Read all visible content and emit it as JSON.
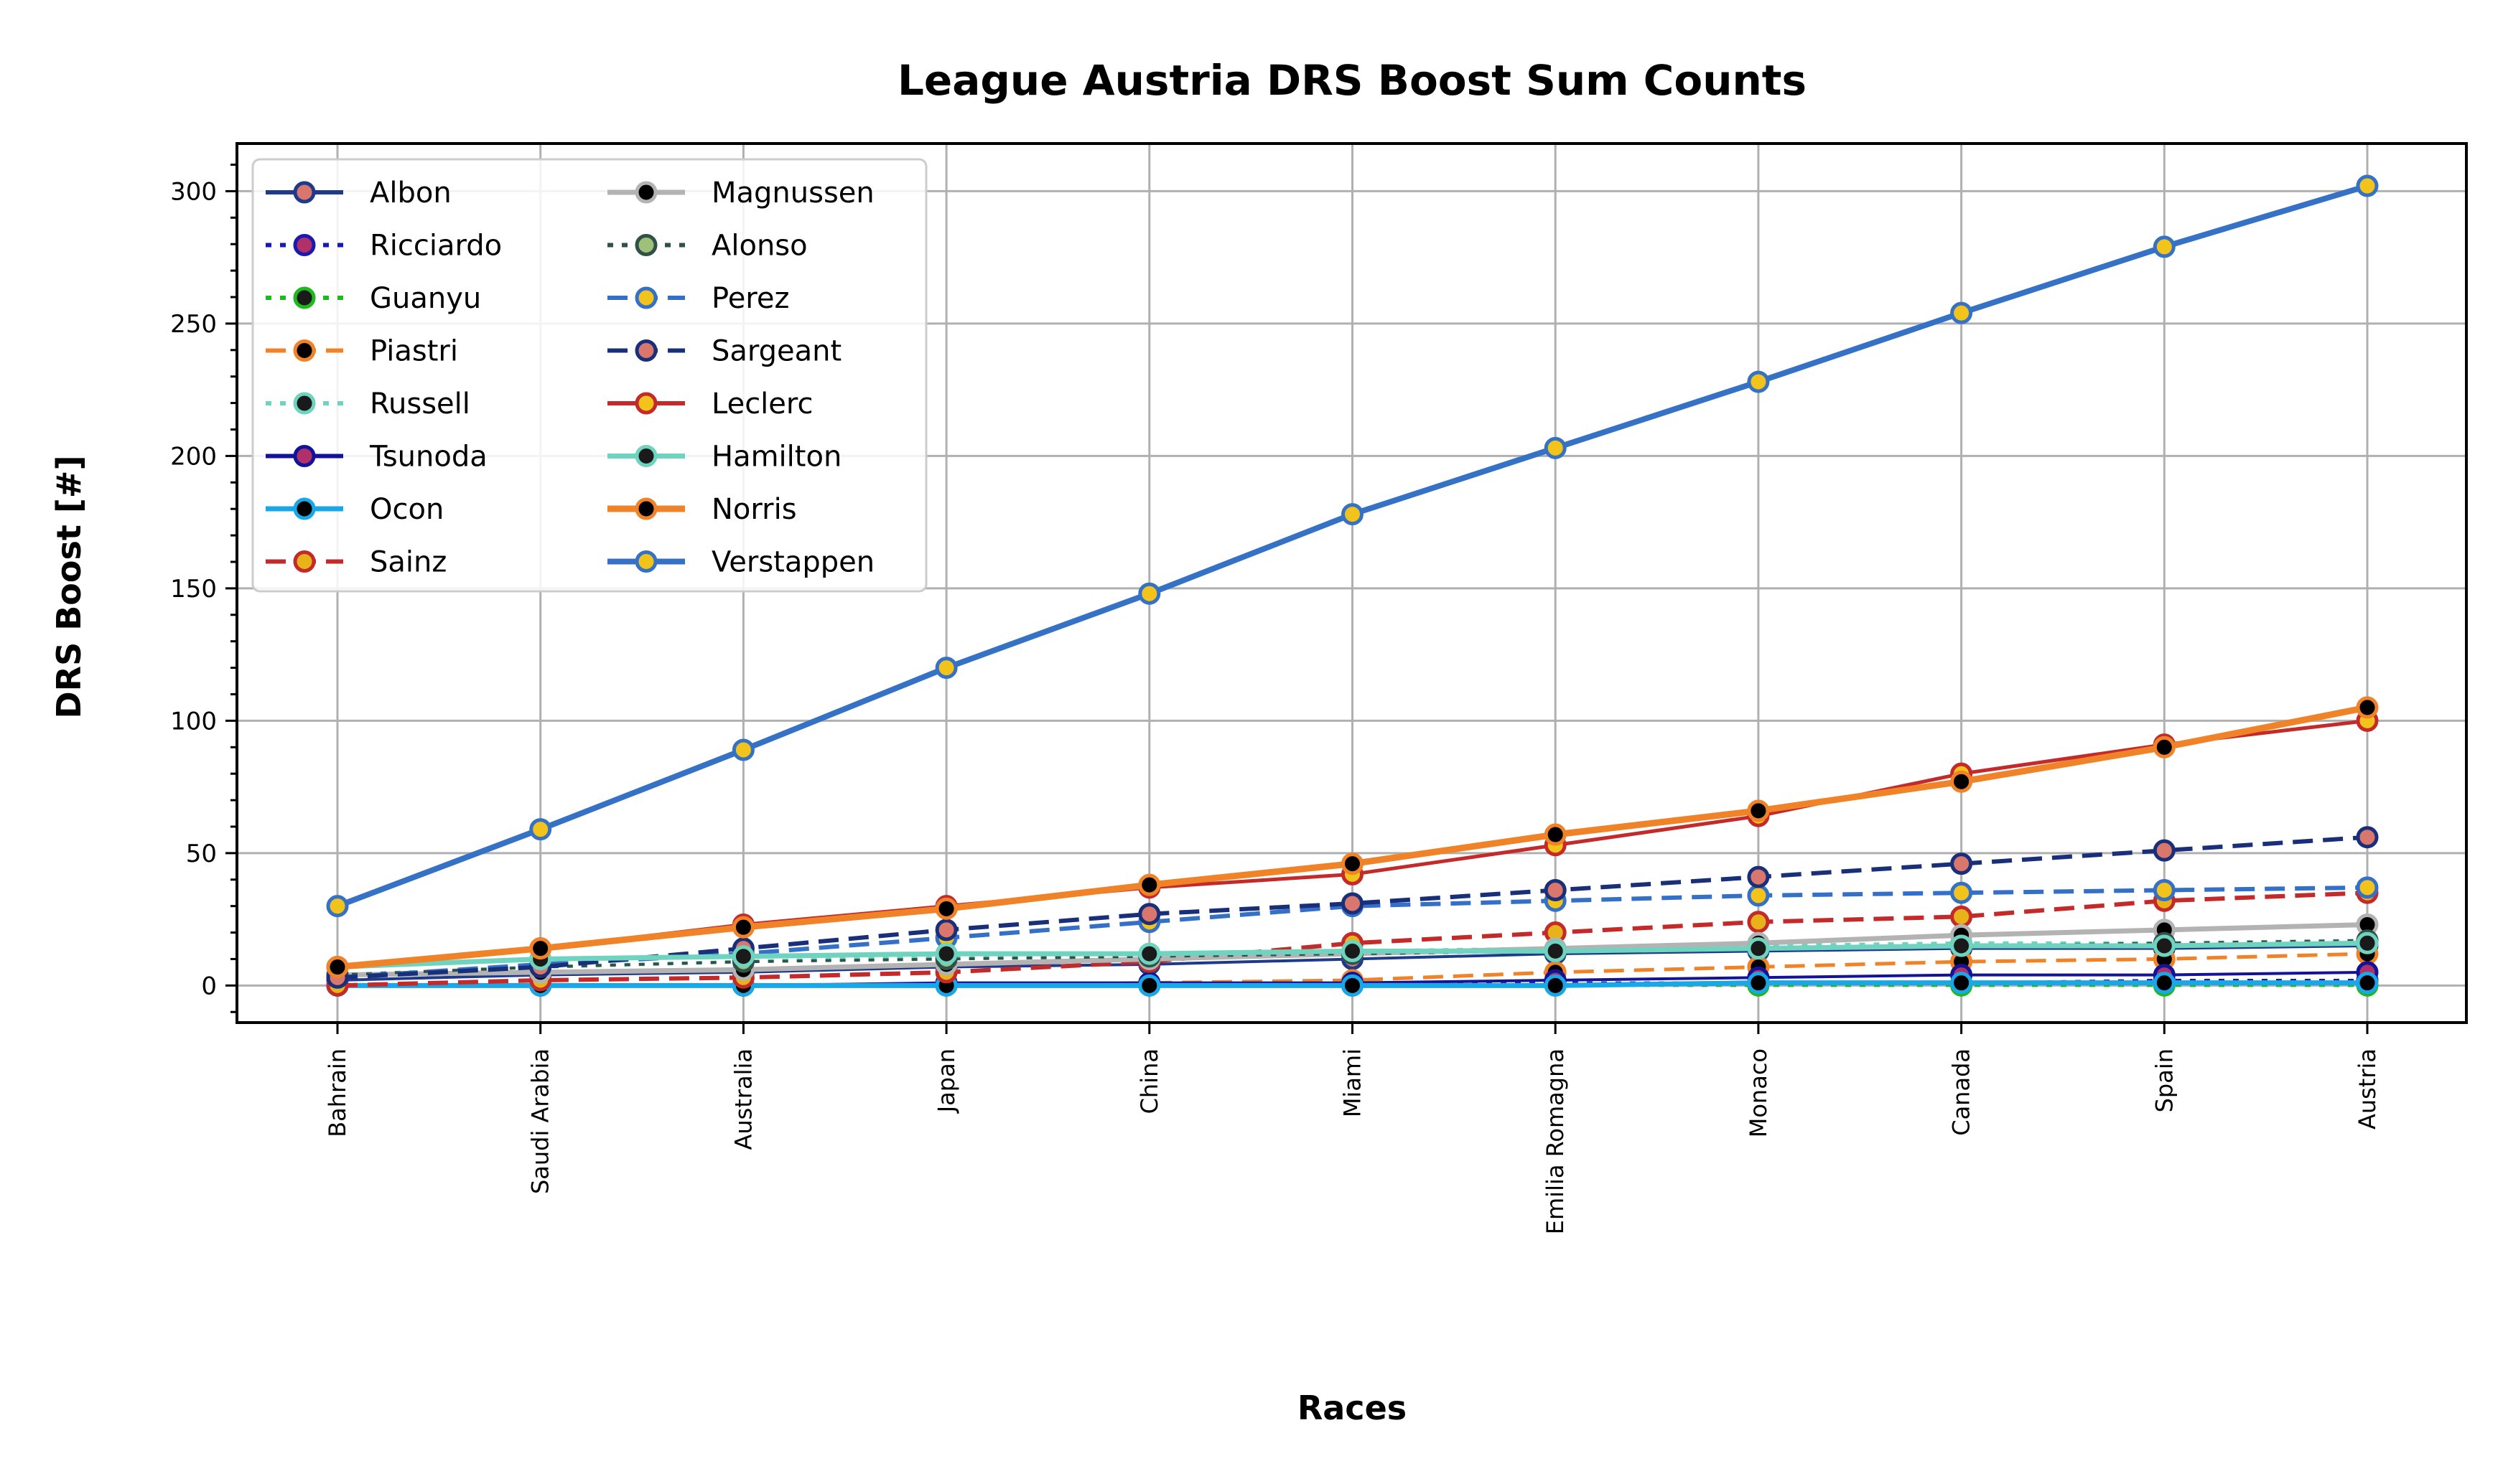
{
  "chart_data": {
    "type": "line",
    "title": "League Austria DRS Boost Sum Counts",
    "xlabel": "Races",
    "ylabel": "DRS Boost [#]",
    "ylim": [
      -14,
      318
    ],
    "yticks": [
      0,
      50,
      100,
      150,
      200,
      250,
      300
    ],
    "grid": true,
    "legend_position": "upper-left",
    "legend_columns": 2,
    "categories": [
      "Bahrain",
      "Saudi Arabia",
      "Australia",
      "Japan",
      "China",
      "Miami",
      "Emilia Romagna",
      "Monaco",
      "Canada",
      "Spain",
      "Austria"
    ],
    "series": [
      {
        "name": "Albon",
        "color": "#1f3a8a",
        "dash": "solid",
        "marker_face": "#d9776c",
        "width": 4,
        "values": [
          2,
          4,
          5,
          7,
          8,
          10,
          12,
          13,
          14,
          14,
          15
        ]
      },
      {
        "name": "Ricciardo",
        "color": "#1a1ab0",
        "dash": "dot",
        "marker_face": "#b0306a",
        "width": 4,
        "values": [
          0,
          0,
          0,
          0,
          0,
          0,
          1,
          1,
          1,
          2,
          2
        ]
      },
      {
        "name": "Guanyu",
        "color": "#1db91d",
        "dash": "dot",
        "marker_face": "#1a1a1a",
        "width": 4,
        "values": [
          0,
          0,
          0,
          0,
          0,
          0,
          0,
          0,
          0,
          0,
          0
        ]
      },
      {
        "name": "Piastri",
        "color": "#f08228",
        "dash": "dash",
        "marker_face": "#000000",
        "width": 5,
        "values": [
          0,
          0,
          0,
          0,
          1,
          2,
          5,
          7,
          9,
          10,
          12
        ]
      },
      {
        "name": "Russell",
        "color": "#6fd4bf",
        "dash": "dot",
        "marker_face": "#1a1a1a",
        "width": 5,
        "values": [
          4,
          7,
          9,
          11,
          12,
          13,
          14,
          15,
          16,
          16,
          17
        ]
      },
      {
        "name": "Tsunoda",
        "color": "#13139a",
        "dash": "solid",
        "marker_face": "#b0306a",
        "width": 4,
        "values": [
          0,
          0,
          0,
          1,
          1,
          1,
          2,
          3,
          4,
          4,
          5
        ]
      },
      {
        "name": "Ocon",
        "color": "#1aa7e8",
        "dash": "solid",
        "marker_face": "#000000",
        "width": 7,
        "values": [
          0,
          0,
          0,
          0,
          0,
          0,
          0,
          1,
          1,
          1,
          1
        ]
      },
      {
        "name": "Sainz",
        "color": "#c42a2a",
        "dash": "dash",
        "marker_face": "#e8b21a",
        "width": 6,
        "values": [
          0,
          2,
          3,
          5,
          9,
          16,
          20,
          24,
          26,
          32,
          35
        ]
      },
      {
        "name": "Magnussen",
        "color": "#b3b3b3",
        "dash": "solid",
        "marker_face": "#000000",
        "width": 7,
        "values": [
          4,
          5,
          6,
          8,
          10,
          12,
          14,
          16,
          19,
          21,
          23
        ]
      },
      {
        "name": "Alonso",
        "color": "#2f5148",
        "dash": "dot",
        "marker_face": "#9fc07a",
        "width": 4,
        "values": [
          4,
          7,
          9,
          10,
          11,
          12,
          13,
          14,
          15,
          16,
          17
        ]
      },
      {
        "name": "Perez",
        "color": "#3570c8",
        "dash": "dash",
        "marker_face": "#f2c31a",
        "width": 6,
        "values": [
          3,
          8,
          12,
          18,
          24,
          30,
          32,
          34,
          35,
          36,
          37
        ]
      },
      {
        "name": "Sargeant",
        "color": "#1a2f7a",
        "dash": "dash",
        "marker_face": "#d9776c",
        "width": 6,
        "values": [
          3,
          7,
          14,
          21,
          27,
          31,
          36,
          41,
          46,
          51,
          56
        ]
      },
      {
        "name": "Leclerc",
        "color": "#c42a2a",
        "dash": "solid",
        "marker_face": "#f2c31a",
        "width": 5,
        "values": [
          7,
          14,
          23,
          30,
          37,
          42,
          53,
          64,
          80,
          91,
          100
        ]
      },
      {
        "name": "Hamilton",
        "color": "#6fd4bf",
        "dash": "solid",
        "marker_face": "#1a1a1a",
        "width": 7,
        "values": [
          7,
          10,
          11,
          12,
          12,
          13,
          13,
          14,
          15,
          15,
          16
        ]
      },
      {
        "name": "Norris",
        "color": "#f08228",
        "dash": "solid",
        "marker_face": "#000000",
        "width": 9,
        "values": [
          7,
          14,
          22,
          29,
          38,
          46,
          57,
          66,
          77,
          90,
          105
        ]
      },
      {
        "name": "Verstappen",
        "color": "#3572c6",
        "dash": "solid",
        "marker_face": "#f2c31a",
        "width": 8,
        "values": [
          30,
          59,
          89,
          120,
          148,
          178,
          203,
          228,
          254,
          279,
          302
        ]
      }
    ]
  }
}
